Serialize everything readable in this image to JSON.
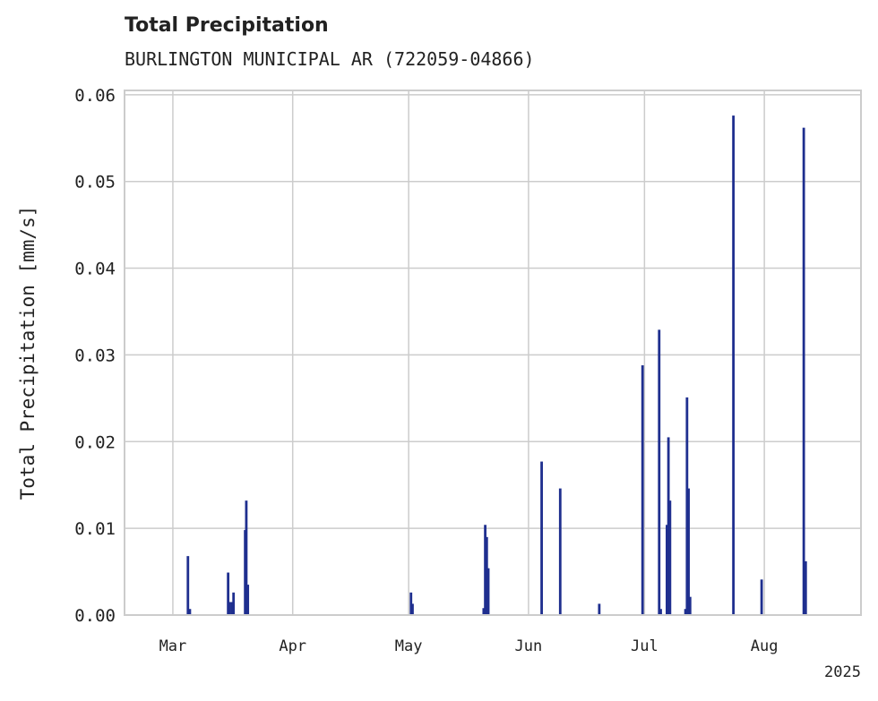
{
  "chart_data": {
    "type": "bar",
    "title": "Total Precipitation",
    "subtitle": "BURLINGTON MUNICIPAL AR (722059-04866)",
    "ylabel": "Total Precipitation [mm/s]",
    "xlabel": "",
    "year_label": "2025",
    "ylim": [
      0,
      0.0605
    ],
    "y_ticks": [
      {
        "value": 0.0,
        "label": "0.00"
      },
      {
        "value": 0.01,
        "label": "0.01"
      },
      {
        "value": 0.02,
        "label": "0.02"
      },
      {
        "value": 0.03,
        "label": "0.03"
      },
      {
        "value": 0.04,
        "label": "0.04"
      },
      {
        "value": 0.05,
        "label": "0.05"
      },
      {
        "value": 0.06,
        "label": "0.06"
      }
    ],
    "x_range_days": [
      -9.5,
      181.0
    ],
    "x_ticks": [
      {
        "day": 3,
        "label": "Mar"
      },
      {
        "day": 34,
        "label": "Apr"
      },
      {
        "day": 64,
        "label": "May"
      },
      {
        "day": 95,
        "label": "Jun"
      },
      {
        "day": 125,
        "label": "Jul"
      },
      {
        "day": 156,
        "label": "Aug"
      }
    ],
    "x_unit": "days since 2025-02-26",
    "bar_color": "#1f2f8f",
    "series": [
      {
        "name": "Total Precipitation",
        "points": [
          {
            "day": 6.9,
            "value": 0.0068
          },
          {
            "day": 7.4,
            "value": 0.0007
          },
          {
            "day": 17.3,
            "value": 0.0049
          },
          {
            "day": 17.7,
            "value": 0.0015
          },
          {
            "day": 18.3,
            "value": 0.0015
          },
          {
            "day": 18.7,
            "value": 0.0026
          },
          {
            "day": 21.7,
            "value": 0.0098
          },
          {
            "day": 22.0,
            "value": 0.0132
          },
          {
            "day": 22.4,
            "value": 0.0035
          },
          {
            "day": 64.6,
            "value": 0.0026
          },
          {
            "day": 65.0,
            "value": 0.0013
          },
          {
            "day": 83.4,
            "value": 0.0008
          },
          {
            "day": 83.8,
            "value": 0.0104
          },
          {
            "day": 84.2,
            "value": 0.009
          },
          {
            "day": 84.6,
            "value": 0.0054
          },
          {
            "day": 98.4,
            "value": 0.0177
          },
          {
            "day": 103.2,
            "value": 0.0146
          },
          {
            "day": 113.3,
            "value": 0.0013
          },
          {
            "day": 124.5,
            "value": 0.0288
          },
          {
            "day": 128.8,
            "value": 0.0329
          },
          {
            "day": 129.2,
            "value": 0.0007
          },
          {
            "day": 130.8,
            "value": 0.0104
          },
          {
            "day": 131.2,
            "value": 0.0205
          },
          {
            "day": 131.6,
            "value": 0.0132
          },
          {
            "day": 135.6,
            "value": 0.0007
          },
          {
            "day": 136.0,
            "value": 0.0251
          },
          {
            "day": 136.4,
            "value": 0.0146
          },
          {
            "day": 136.8,
            "value": 0.0021
          },
          {
            "day": 148.0,
            "value": 0.0576
          },
          {
            "day": 155.3,
            "value": 0.0041
          },
          {
            "day": 166.2,
            "value": 0.0562
          },
          {
            "day": 166.7,
            "value": 0.0062
          }
        ]
      }
    ]
  }
}
